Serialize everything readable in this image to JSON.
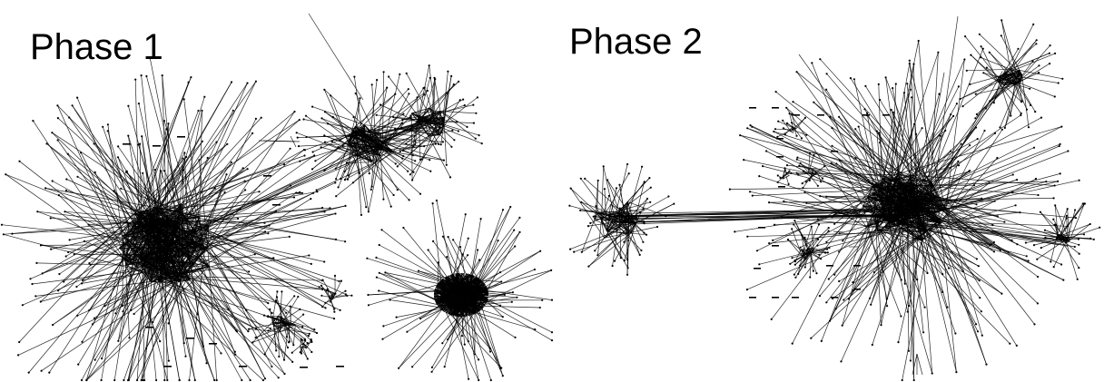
{
  "panels": [
    {
      "title": "Phase 1"
    },
    {
      "title": "Phase 2"
    }
  ],
  "colors": {
    "edge": "#000000",
    "node": "#000000",
    "background": "#ffffff"
  }
}
